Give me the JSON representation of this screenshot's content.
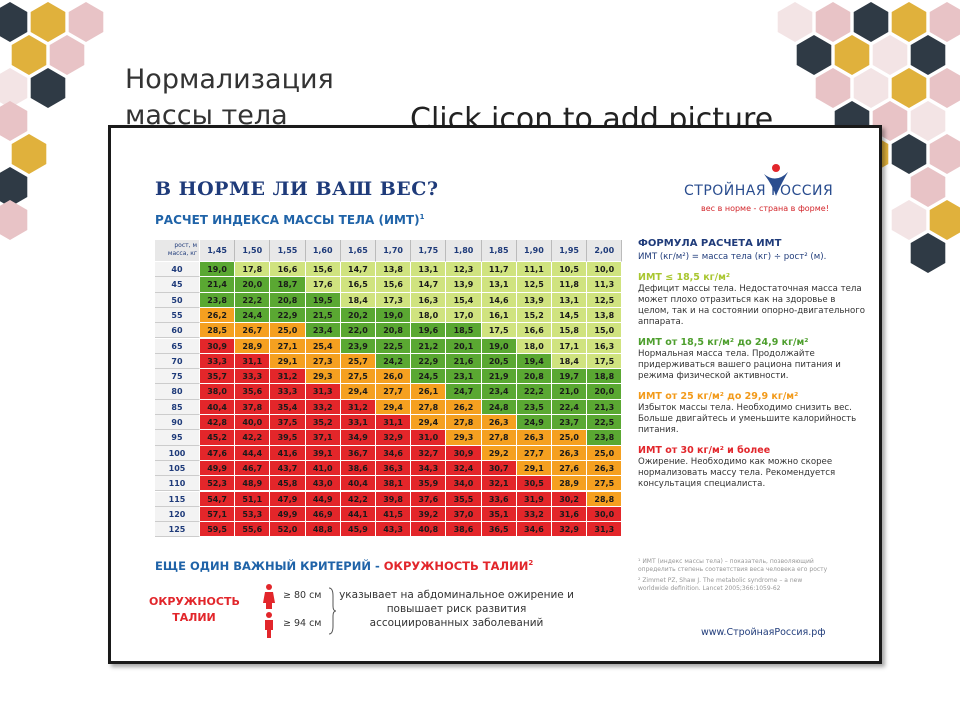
{
  "slide": {
    "title": "Нормализация массы тела",
    "placeholder": "Click icon to add picture"
  },
  "poster": {
    "title": "В НОРМЕ ЛИ ВАШ ВЕС?",
    "logo": "СТРОЙНАЯ РОССИЯ",
    "tagline": "вес в норме - страна в форме!",
    "table_title": "РАСЧЕТ ИНДЕКСА МАССЫ ТЕЛА (ИМТ)",
    "table_title_note": "1",
    "table": {
      "corner": [
        "рост, м",
        "масса, кг"
      ],
      "heights": [
        "1,45",
        "1,50",
        "1,55",
        "1,60",
        "1,65",
        "1,70",
        "1,75",
        "1,80",
        "1,85",
        "1,90",
        "1,95",
        "2,00"
      ],
      "rows": [
        {
          "weight": "40",
          "values": [
            "19,0",
            "17,8",
            "16,6",
            "15,6",
            "14,7",
            "13,8",
            "13,1",
            "12,3",
            "11,7",
            "11,1",
            "10,5",
            "10,0"
          ]
        },
        {
          "weight": "45",
          "values": [
            "21,4",
            "20,0",
            "18,7",
            "17,6",
            "16,5",
            "15,6",
            "14,7",
            "13,9",
            "13,1",
            "12,5",
            "11,8",
            "11,3"
          ]
        },
        {
          "weight": "50",
          "values": [
            "23,8",
            "22,2",
            "20,8",
            "19,5",
            "18,4",
            "17,3",
            "16,3",
            "15,4",
            "14,6",
            "13,9",
            "13,1",
            "12,5"
          ]
        },
        {
          "weight": "55",
          "values": [
            "26,2",
            "24,4",
            "22,9",
            "21,5",
            "20,2",
            "19,0",
            "18,0",
            "17,0",
            "16,1",
            "15,2",
            "14,5",
            "13,8"
          ]
        },
        {
          "weight": "60",
          "values": [
            "28,5",
            "26,7",
            "25,0",
            "23,4",
            "22,0",
            "20,8",
            "19,6",
            "18,5",
            "17,5",
            "16,6",
            "15,8",
            "15,0"
          ]
        },
        {
          "weight": "65",
          "values": [
            "30,9",
            "28,9",
            "27,1",
            "25,4",
            "23,9",
            "22,5",
            "21,2",
            "20,1",
            "19,0",
            "18,0",
            "17,1",
            "16,3"
          ]
        },
        {
          "weight": "70",
          "values": [
            "33,3",
            "31,1",
            "29,1",
            "27,3",
            "25,7",
            "24,2",
            "22,9",
            "21,6",
            "20,5",
            "19,4",
            "18,4",
            "17,5"
          ]
        },
        {
          "weight": "75",
          "values": [
            "35,7",
            "33,3",
            "31,2",
            "29,3",
            "27,5",
            "26,0",
            "24,5",
            "23,1",
            "21,9",
            "20,8",
            "19,7",
            "18,8"
          ]
        },
        {
          "weight": "80",
          "values": [
            "38,0",
            "35,6",
            "33,3",
            "31,3",
            "29,4",
            "27,7",
            "26,1",
            "24,7",
            "23,4",
            "22,2",
            "21,0",
            "20,0"
          ]
        },
        {
          "weight": "85",
          "values": [
            "40,4",
            "37,8",
            "35,4",
            "33,2",
            "31,2",
            "29,4",
            "27,8",
            "26,2",
            "24,8",
            "23,5",
            "22,4",
            "21,3"
          ]
        },
        {
          "weight": "90",
          "values": [
            "42,8",
            "40,0",
            "37,5",
            "35,2",
            "33,1",
            "31,1",
            "29,4",
            "27,8",
            "26,3",
            "24,9",
            "23,7",
            "22,5"
          ]
        },
        {
          "weight": "95",
          "values": [
            "45,2",
            "42,2",
            "39,5",
            "37,1",
            "34,9",
            "32,9",
            "31,0",
            "29,3",
            "27,8",
            "26,3",
            "25,0",
            "23,8"
          ]
        },
        {
          "weight": "100",
          "values": [
            "47,6",
            "44,4",
            "41,6",
            "39,1",
            "36,7",
            "34,6",
            "32,7",
            "30,9",
            "29,2",
            "27,7",
            "26,3",
            "25,0"
          ]
        },
        {
          "weight": "105",
          "values": [
            "49,9",
            "46,7",
            "43,7",
            "41,0",
            "38,6",
            "36,3",
            "34,3",
            "32,4",
            "30,7",
            "29,1",
            "27,6",
            "26,3"
          ]
        },
        {
          "weight": "110",
          "values": [
            "52,3",
            "48,9",
            "45,8",
            "43,0",
            "40,4",
            "38,1",
            "35,9",
            "34,0",
            "32,1",
            "30,5",
            "28,9",
            "27,5"
          ]
        },
        {
          "weight": "115",
          "values": [
            "54,7",
            "51,1",
            "47,9",
            "44,9",
            "42,2",
            "39,8",
            "37,6",
            "35,5",
            "33,6",
            "31,9",
            "30,2",
            "28,8"
          ]
        },
        {
          "weight": "120",
          "values": [
            "57,1",
            "53,3",
            "49,9",
            "46,9",
            "44,1",
            "41,5",
            "39,2",
            "37,0",
            "35,1",
            "33,2",
            "31,6",
            "30,0"
          ]
        },
        {
          "weight": "125",
          "values": [
            "59,5",
            "55,6",
            "52,0",
            "48,8",
            "45,9",
            "43,3",
            "40,8",
            "38,6",
            "36,5",
            "34,6",
            "32,9",
            "31,3"
          ]
        }
      ]
    },
    "bmi_limits": [
      18.5,
      25,
      30
    ],
    "colors": [
      "#a9c630",
      "#4e9f2e",
      "#f29a1a",
      "#e2262b"
    ],
    "cell_colors": [
      "#d0e37f",
      "#5aa832",
      "#f5a020",
      "#e3262a"
    ],
    "formula": {
      "heading": "ФОРМУЛА РАСЧЕТА ИМТ",
      "text": "ИМТ (кг/м²) = масса тела (кг) ÷ рост² (м)."
    },
    "classes": [
      {
        "heading": "ИМТ ≤ 18,5 кг/м²",
        "text": "Дефицит массы тела. Недостаточная масса тела может плохо отразиться как на здоровье в целом, так и на состоянии опорно-двигательного аппарата."
      },
      {
        "heading": "ИМТ от 18,5 кг/м² до 24,9 кг/м²",
        "text": "Нормальная масса тела. Продолжайте придерживаться вашего рациона питания и режима физической активности."
      },
      {
        "heading": "ИМТ от 25 кг/м² до 29,9 кг/м²",
        "text": "Избыток массы тела. Необходимо снизить вес. Больше двигайтесь и уменьшите калорийность питания."
      },
      {
        "heading": "ИМТ от 30 кг/м² и более",
        "text": "Ожирение. Необходимо как можно скорее нормализовать массу тела. Рекомендуется консультация специалиста."
      }
    ],
    "waist": {
      "heading": "ЕЩЕ ОДИН ВАЖНЫЙ КРИТЕРИЙ - ",
      "heading_red": "ОКРУЖНОСТЬ ТАЛИИ",
      "note": "2",
      "label": "ОКРУЖНОСТЬ ТАЛИИ",
      "women": "≥ 80 см",
      "men": "≥ 94 см",
      "text": "указывает на абдоминальное ожирение и повышает риск развития ассоциированных заболеваний"
    },
    "footnotes": [
      "¹ ИМТ (индекс массы тела) – показатель, позволяющий определить степень соответствия веса человека его росту",
      "² Zimmet PZ, Shaw J. The metabolic syndrome – a new worldwide definition. Lancet 2005;366:1059-62"
    ],
    "website": "www.СтройнаяРоссия.рф"
  }
}
